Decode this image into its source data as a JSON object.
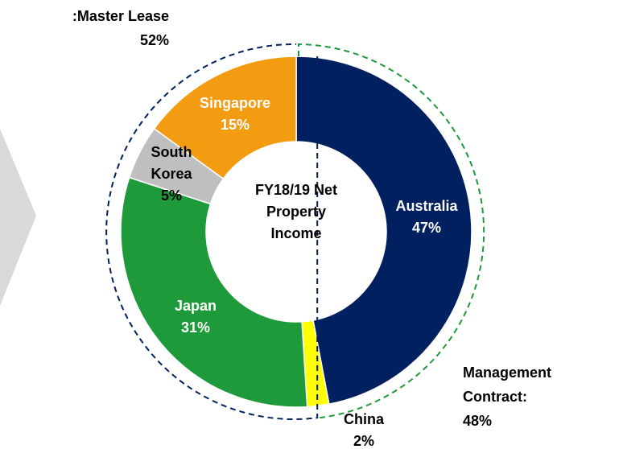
{
  "chart_data": {
    "type": "donut",
    "title": "FY18/19 Net Property Income",
    "categories": [
      "Australia",
      "China",
      "Japan",
      "South Korea",
      "Singapore"
    ],
    "values": [
      47,
      2,
      31,
      5,
      15
    ],
    "value_labels": [
      "47%",
      "2%",
      "31%",
      "5%",
      "15%"
    ],
    "colors": [
      "#002060",
      "#ffff00",
      "#1e9a3a",
      "#bfbfbf",
      "#f39c12"
    ],
    "groups": [
      {
        "name": "Management Contract:",
        "value": 48,
        "value_label": "48%",
        "color": "#1e9a3a"
      },
      {
        "name": "Master Lease:",
        "value": 52,
        "value_label": "52%",
        "color": "#002060"
      }
    ]
  }
}
